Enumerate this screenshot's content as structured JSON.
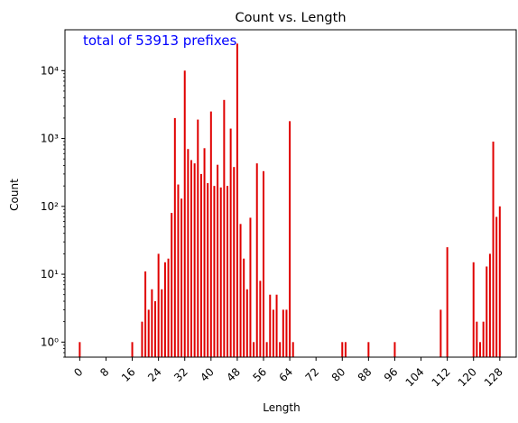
{
  "chart_data": {
    "type": "bar",
    "title": "Count vs. Length",
    "xlabel": "Length",
    "ylabel": "Count",
    "annotation": "total of 53913 prefixes",
    "yscale": "log",
    "ylim": [
      0.6,
      40000
    ],
    "xlim": [
      -4.5,
      133
    ],
    "xticks": [
      0,
      8,
      16,
      24,
      32,
      40,
      48,
      56,
      64,
      72,
      80,
      88,
      96,
      104,
      112,
      120,
      128
    ],
    "yticks": [
      {
        "value": 1,
        "label": "10⁰"
      },
      {
        "value": 10,
        "label": "10¹"
      },
      {
        "value": 100,
        "label": "10²"
      },
      {
        "value": 1000,
        "label": "10³"
      },
      {
        "value": 10000,
        "label": "10⁴"
      }
    ],
    "bar_color": "#e00000",
    "grid": false,
    "series": [
      {
        "x": [
          0,
          16,
          19,
          20,
          21,
          22,
          23,
          24,
          25,
          26,
          27,
          28,
          29,
          30,
          31,
          32,
          33,
          34,
          35,
          36,
          37,
          38,
          39,
          40,
          41,
          42,
          43,
          44,
          45,
          46,
          47,
          48,
          49,
          50,
          51,
          52,
          53,
          54,
          55,
          56,
          57,
          58,
          59,
          60,
          61,
          62,
          63,
          64,
          65,
          80,
          81,
          88,
          96,
          110,
          112,
          120,
          121,
          122,
          123,
          124,
          125,
          126,
          127,
          128
        ],
        "values": [
          1,
          1,
          2,
          11,
          3,
          6,
          4,
          20,
          6,
          15,
          17,
          80,
          2000,
          210,
          130,
          10000,
          700,
          480,
          430,
          1900,
          300,
          720,
          220,
          2500,
          200,
          410,
          190,
          3700,
          200,
          1400,
          380,
          25000,
          55,
          17,
          6,
          68,
          1,
          430,
          8,
          330,
          1,
          5,
          3,
          5,
          1,
          3,
          3,
          1800,
          1,
          1,
          1,
          1,
          1,
          3,
          25,
          15,
          2,
          1,
          2,
          13,
          20,
          900,
          70,
          100
        ]
      }
    ]
  }
}
